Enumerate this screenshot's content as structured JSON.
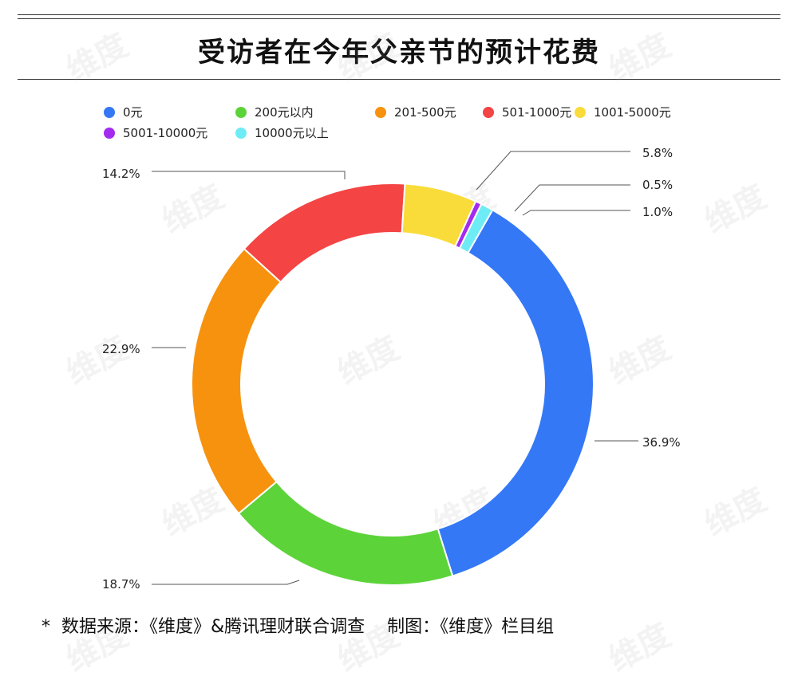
{
  "title": "受访者在今年父亲节的预计花费",
  "footer": {
    "star": "*",
    "text": "数据来源：《维度》&腾讯理财联合调查    制图：《维度》栏目组"
  },
  "watermark": "维度",
  "chart_data": {
    "type": "pie",
    "donut": true,
    "legend_position": "top",
    "series": [
      {
        "name": "0元",
        "value": 36.9,
        "label": "36.9%",
        "color": "#3478F6"
      },
      {
        "name": "200元以内",
        "value": 18.7,
        "label": "18.7%",
        "color": "#5DD33A"
      },
      {
        "name": "201-500元",
        "value": 22.9,
        "label": "22.9%",
        "color": "#F7920E"
      },
      {
        "name": "501-1000元",
        "value": 14.2,
        "label": "14.2%",
        "color": "#F44444"
      },
      {
        "name": "1001-5000元",
        "value": 5.8,
        "label": "5.8%",
        "color": "#F9DC3A"
      },
      {
        "name": "5001-10000元",
        "value": 0.5,
        "label": "0.5%",
        "color": "#A32BEF"
      },
      {
        "name": "10000元以上",
        "value": 1.0,
        "label": "1.0%",
        "color": "#6EECF5"
      }
    ]
  }
}
